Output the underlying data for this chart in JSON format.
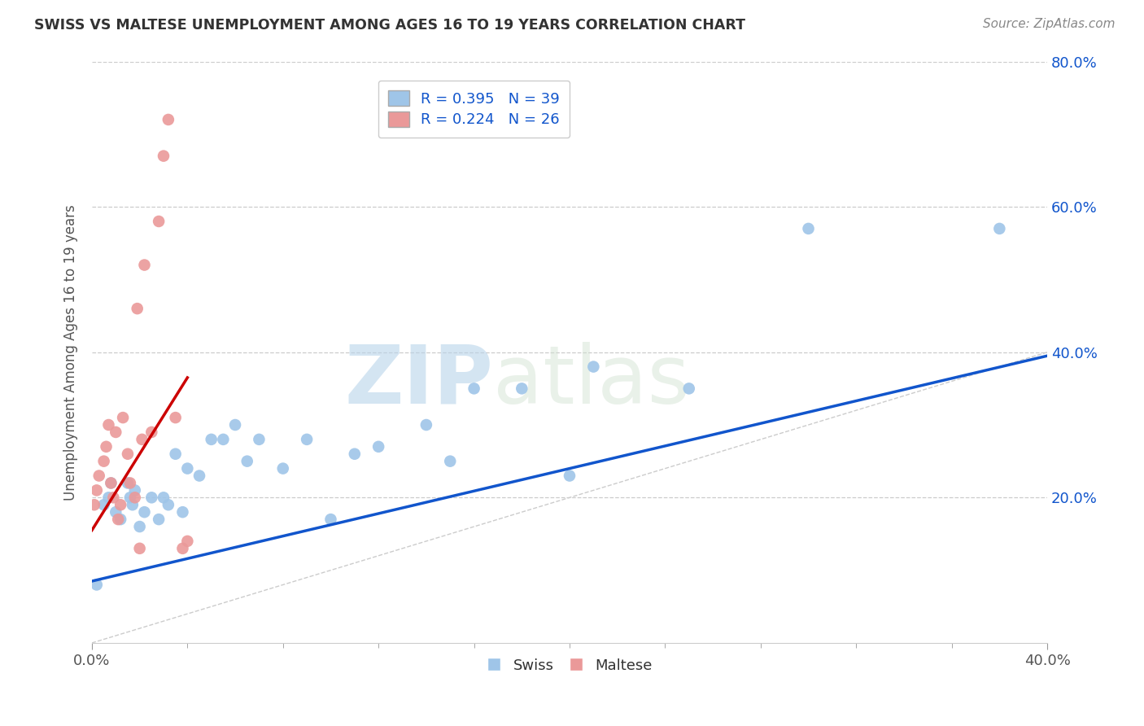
{
  "title": "SWISS VS MALTESE UNEMPLOYMENT AMONG AGES 16 TO 19 YEARS CORRELATION CHART",
  "source": "Source: ZipAtlas.com",
  "ylabel": "Unemployment Among Ages 16 to 19 years",
  "xlim": [
    0.0,
    0.4
  ],
  "ylim": [
    0.0,
    0.8
  ],
  "xtick_positions": [
    0.0,
    0.4
  ],
  "xtick_labels": [
    "0.0%",
    "40.0%"
  ],
  "ytick_positions": [
    0.2,
    0.4,
    0.6,
    0.8
  ],
  "ytick_labels": [
    "20.0%",
    "40.0%",
    "60.0%",
    "80.0%"
  ],
  "swiss_R": 0.395,
  "swiss_N": 39,
  "maltese_R": 0.224,
  "maltese_N": 26,
  "swiss_color": "#9fc5e8",
  "maltese_color": "#ea9999",
  "swiss_line_color": "#1155cc",
  "maltese_line_color": "#cc0000",
  "diagonal_color": "#cccccc",
  "background_color": "#ffffff",
  "watermark_zip": "ZIP",
  "watermark_atlas": "atlas",
  "swiss_x": [
    0.002,
    0.005,
    0.007,
    0.008,
    0.01,
    0.012,
    0.015,
    0.016,
    0.017,
    0.018,
    0.02,
    0.022,
    0.025,
    0.028,
    0.03,
    0.032,
    0.035,
    0.038,
    0.04,
    0.045,
    0.05,
    0.055,
    0.06,
    0.065,
    0.07,
    0.08,
    0.09,
    0.1,
    0.11,
    0.12,
    0.14,
    0.15,
    0.16,
    0.18,
    0.2,
    0.21,
    0.25,
    0.3,
    0.38
  ],
  "swiss_y": [
    0.08,
    0.19,
    0.2,
    0.22,
    0.18,
    0.17,
    0.22,
    0.2,
    0.19,
    0.21,
    0.16,
    0.18,
    0.2,
    0.17,
    0.2,
    0.19,
    0.26,
    0.18,
    0.24,
    0.23,
    0.28,
    0.28,
    0.3,
    0.25,
    0.28,
    0.24,
    0.28,
    0.17,
    0.26,
    0.27,
    0.3,
    0.25,
    0.35,
    0.35,
    0.23,
    0.38,
    0.35,
    0.57,
    0.57
  ],
  "maltese_x": [
    0.001,
    0.002,
    0.003,
    0.005,
    0.006,
    0.007,
    0.008,
    0.009,
    0.01,
    0.011,
    0.012,
    0.013,
    0.015,
    0.016,
    0.018,
    0.019,
    0.02,
    0.021,
    0.022,
    0.025,
    0.028,
    0.03,
    0.032,
    0.035,
    0.038,
    0.04
  ],
  "maltese_y": [
    0.19,
    0.21,
    0.23,
    0.25,
    0.27,
    0.3,
    0.22,
    0.2,
    0.29,
    0.17,
    0.19,
    0.31,
    0.26,
    0.22,
    0.2,
    0.46,
    0.13,
    0.28,
    0.52,
    0.29,
    0.58,
    0.67,
    0.72,
    0.31,
    0.13,
    0.14
  ],
  "swiss_trend_x": [
    0.0,
    0.4
  ],
  "swiss_trend_y": [
    0.085,
    0.395
  ],
  "maltese_trend_x": [
    0.0,
    0.04
  ],
  "maltese_trend_y": [
    0.155,
    0.365
  ]
}
